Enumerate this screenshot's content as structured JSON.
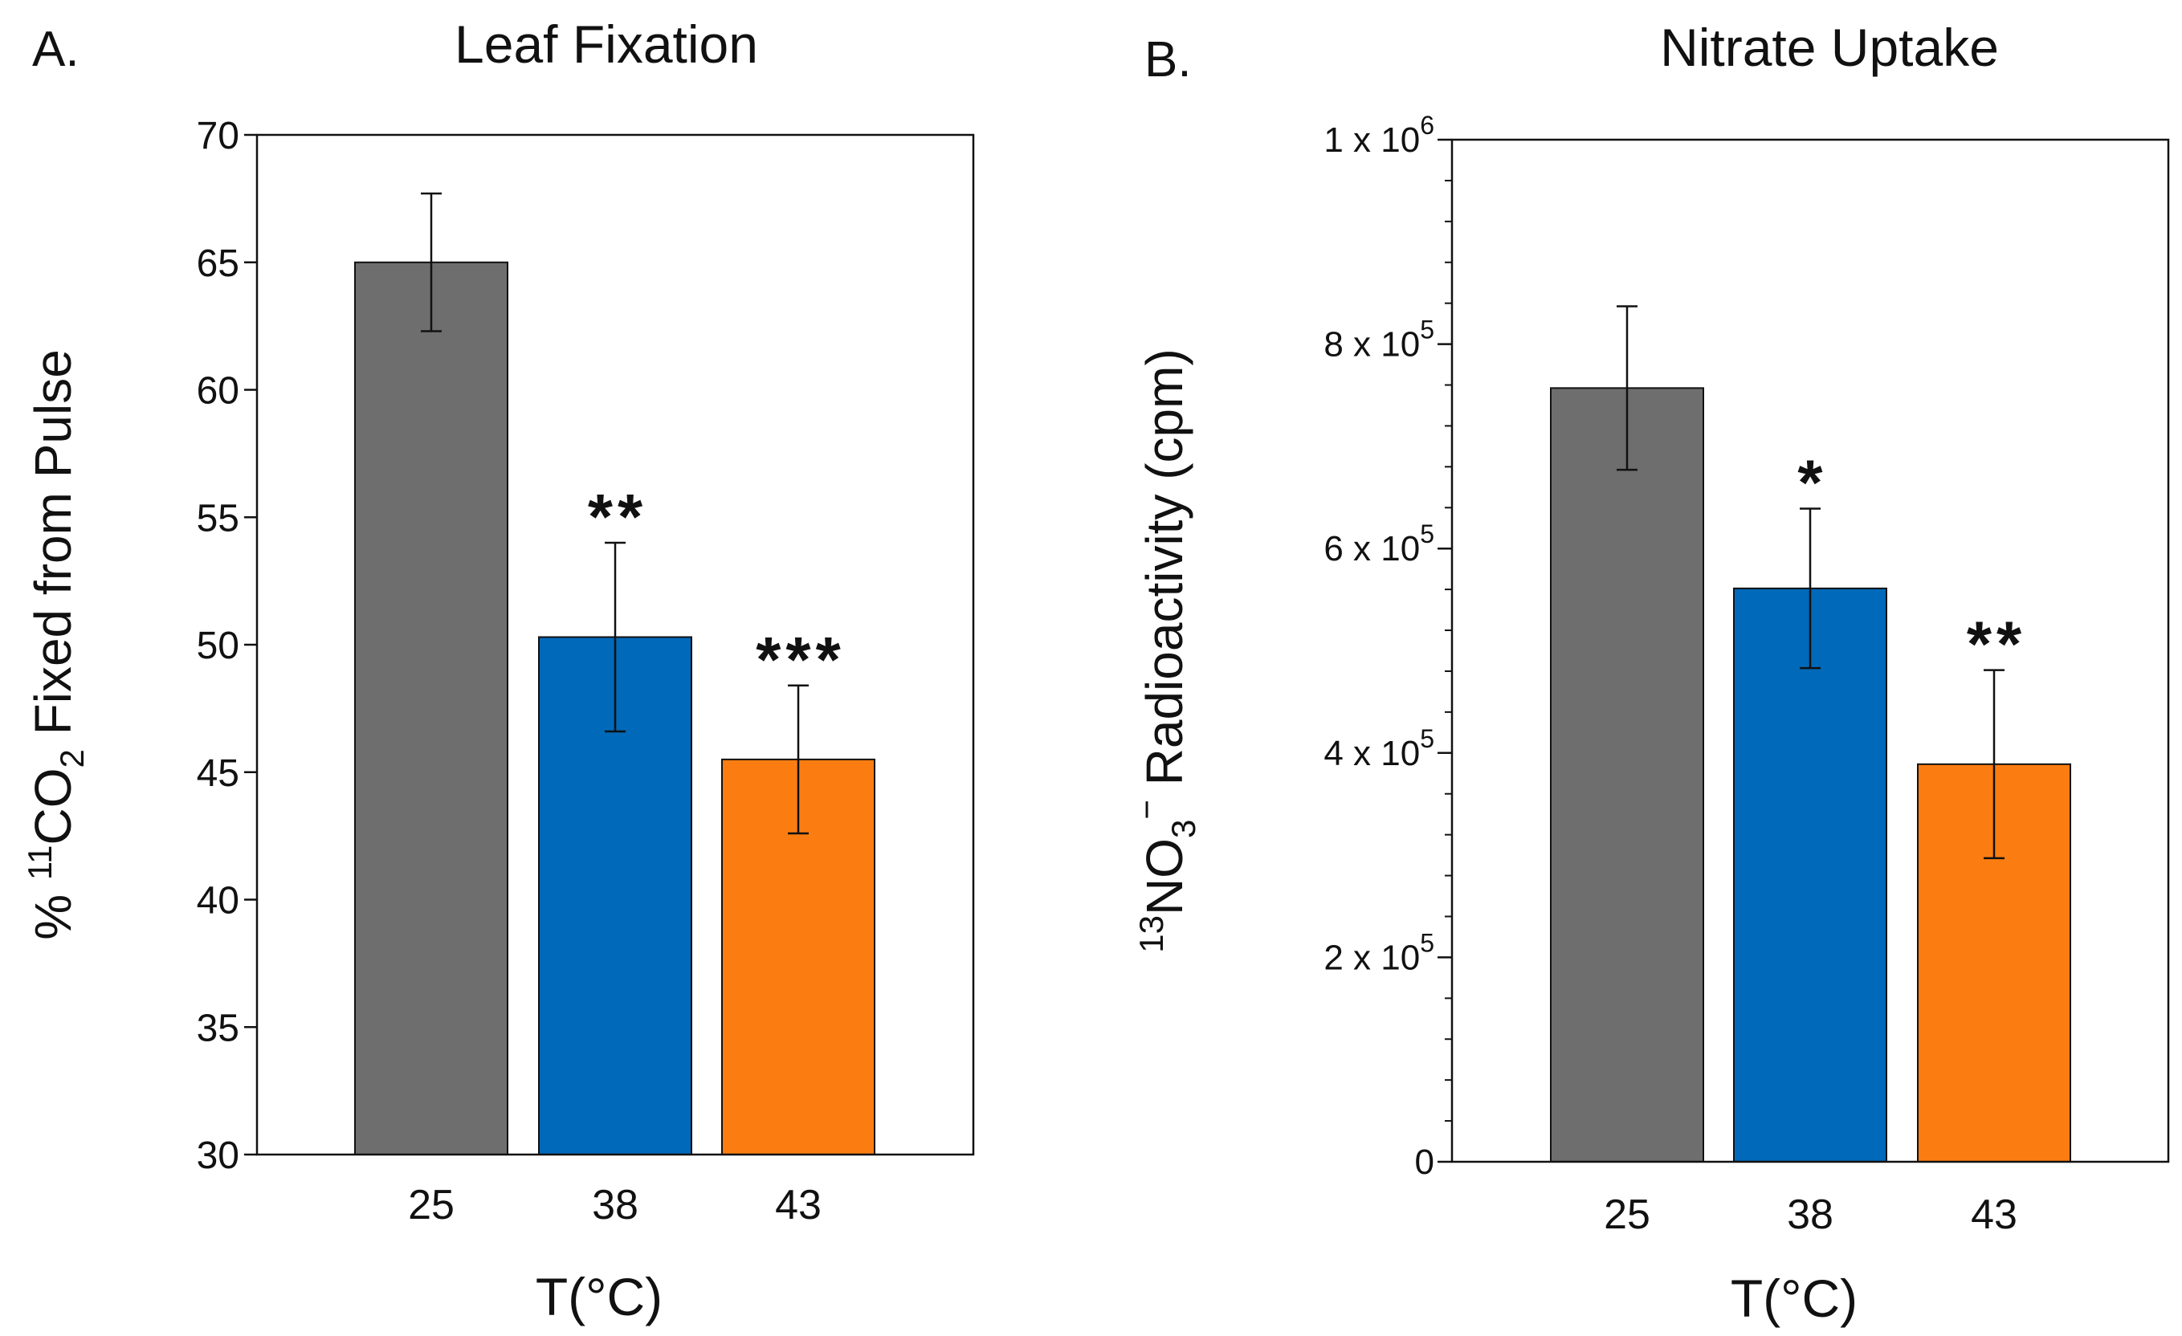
{
  "chart_data": [
    {
      "panel": "A.",
      "type": "bar",
      "title": "Leaf Fixation",
      "xlabel": "T(°C)",
      "ylabel": {
        "prefix": "% ",
        "isotope": "11",
        "species": "CO",
        "subscript": "2",
        "suffix": " Fixed from Pulse"
      },
      "categories": [
        "25",
        "38",
        "43"
      ],
      "values": [
        65.0,
        50.3,
        45.5
      ],
      "errors": [
        2.7,
        3.7,
        2.9
      ],
      "significance": [
        "",
        "**",
        "***"
      ],
      "colors": [
        "#6e6e6e",
        "#0069b9",
        "#fb7d11"
      ],
      "ylim": [
        30,
        70
      ],
      "yticks": [
        "30",
        "35",
        "40",
        "45",
        "50",
        "55",
        "60",
        "65",
        "70"
      ],
      "grid": false
    },
    {
      "panel": "B.",
      "type": "bar",
      "title": "Nitrate Uptake",
      "xlabel": "T(°C)",
      "ylabel": {
        "isotope": "13",
        "species": "NO",
        "subscript": "3",
        "charge": "−",
        "suffix": " Radioactivity (cpm)"
      },
      "categories": [
        "25",
        "38",
        "43"
      ],
      "values": [
        757000,
        561000,
        389000
      ],
      "errors": [
        80000,
        78000,
        92000
      ],
      "significance": [
        "",
        "*",
        "**"
      ],
      "colors": [
        "#6e6e6e",
        "#0069b9",
        "#fb7d11"
      ],
      "ylim": [
        0,
        1000000
      ],
      "yticks": [
        {
          "mantissa": "0",
          "times": "",
          "base": "",
          "exp": "",
          "value": 0
        },
        {
          "mantissa": "2",
          "times": " x ",
          "base": "10",
          "exp": "5",
          "value": 200000
        },
        {
          "mantissa": "4",
          "times": " x ",
          "base": "10",
          "exp": "5",
          "value": 400000
        },
        {
          "mantissa": "6",
          "times": " x ",
          "base": "10",
          "exp": "5",
          "value": 600000
        },
        {
          "mantissa": "8",
          "times": " x ",
          "base": "10",
          "exp": "5",
          "value": 800000
        },
        {
          "mantissa": "1",
          "times": " x ",
          "base": "10",
          "exp": "6",
          "value": 1000000
        }
      ],
      "grid": false
    }
  ]
}
